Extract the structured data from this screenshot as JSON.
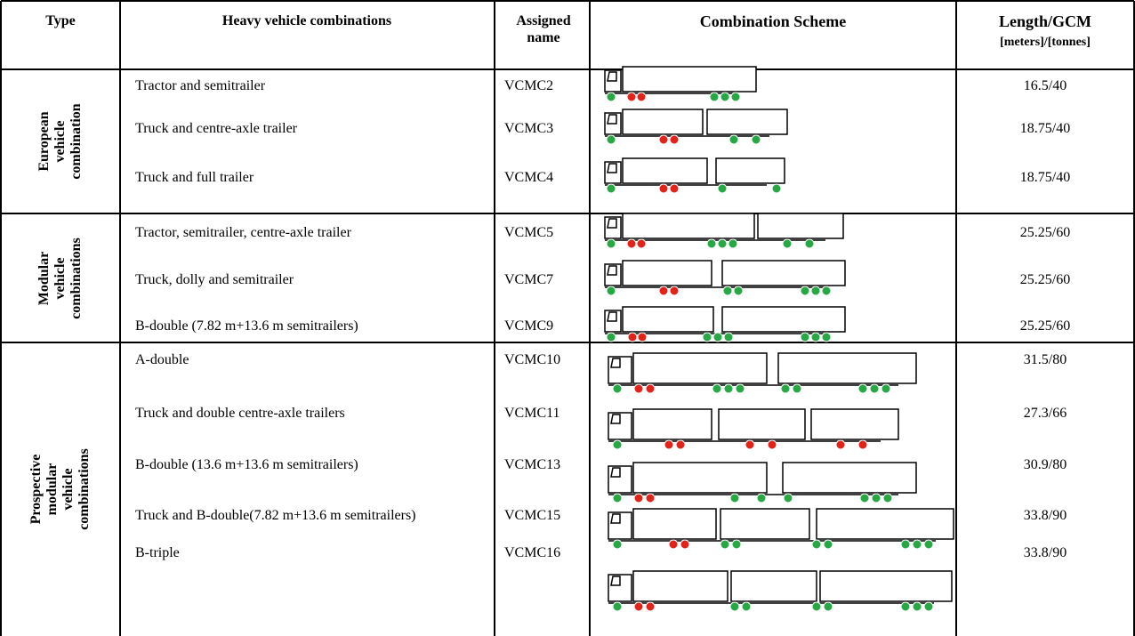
{
  "header": {
    "type": "Type",
    "combinations": "Heavy vehicle combinations",
    "assigned_name": "Assigned name",
    "scheme": "Combination Scheme",
    "length_gcm": "Length/GCM",
    "length_gcm_units": "[meters]/[tonnes]"
  },
  "groups": [
    {
      "type": "European vehicle combination",
      "rows": [
        {
          "combination": "Tractor and semitrailer",
          "assigned_name": "VCMC2",
          "length_gcm": "16.5/40"
        },
        {
          "combination": "Truck and centre-axle trailer",
          "assigned_name": "VCMC3",
          "length_gcm": "18.75/40"
        },
        {
          "combination": "Truck and full trailer",
          "assigned_name": "VCMC4",
          "length_gcm": "18.75/40"
        }
      ]
    },
    {
      "type": "Modular vehicle combinations",
      "rows": [
        {
          "combination": "Tractor, semitrailer, centre-axle trailer",
          "assigned_name": "VCMC5",
          "length_gcm": "25.25/60"
        },
        {
          "combination": "Truck, dolly and semitrailer",
          "assigned_name": "VCMC7",
          "length_gcm": "25.25/60"
        },
        {
          "combination": "B-double (7.82 m+13.6 m semitrailers)",
          "assigned_name": "VCMC9",
          "length_gcm": "25.25/60"
        }
      ]
    },
    {
      "type": "Prospective modular vehicle combinations",
      "rows": [
        {
          "combination": "A-double",
          "assigned_name": "VCMC10",
          "length_gcm": "31.5/80"
        },
        {
          "combination": "Truck and double centre-axle trailers",
          "assigned_name": "VCMC11",
          "length_gcm": "27.3/66"
        },
        {
          "combination": "B-double (13.6 m+13.6 m semitrailers)",
          "assigned_name": "VCMC13",
          "length_gcm": "30.9/80"
        },
        {
          "combination": "Truck and B-double(7.82 m+13.6 m semitrailers)",
          "assigned_name": "VCMC15",
          "length_gcm": "33.8/90"
        },
        {
          "combination": "B-triple",
          "assigned_name": "VCMC16",
          "length_gcm": "33.8/90"
        }
      ]
    }
  ]
}
